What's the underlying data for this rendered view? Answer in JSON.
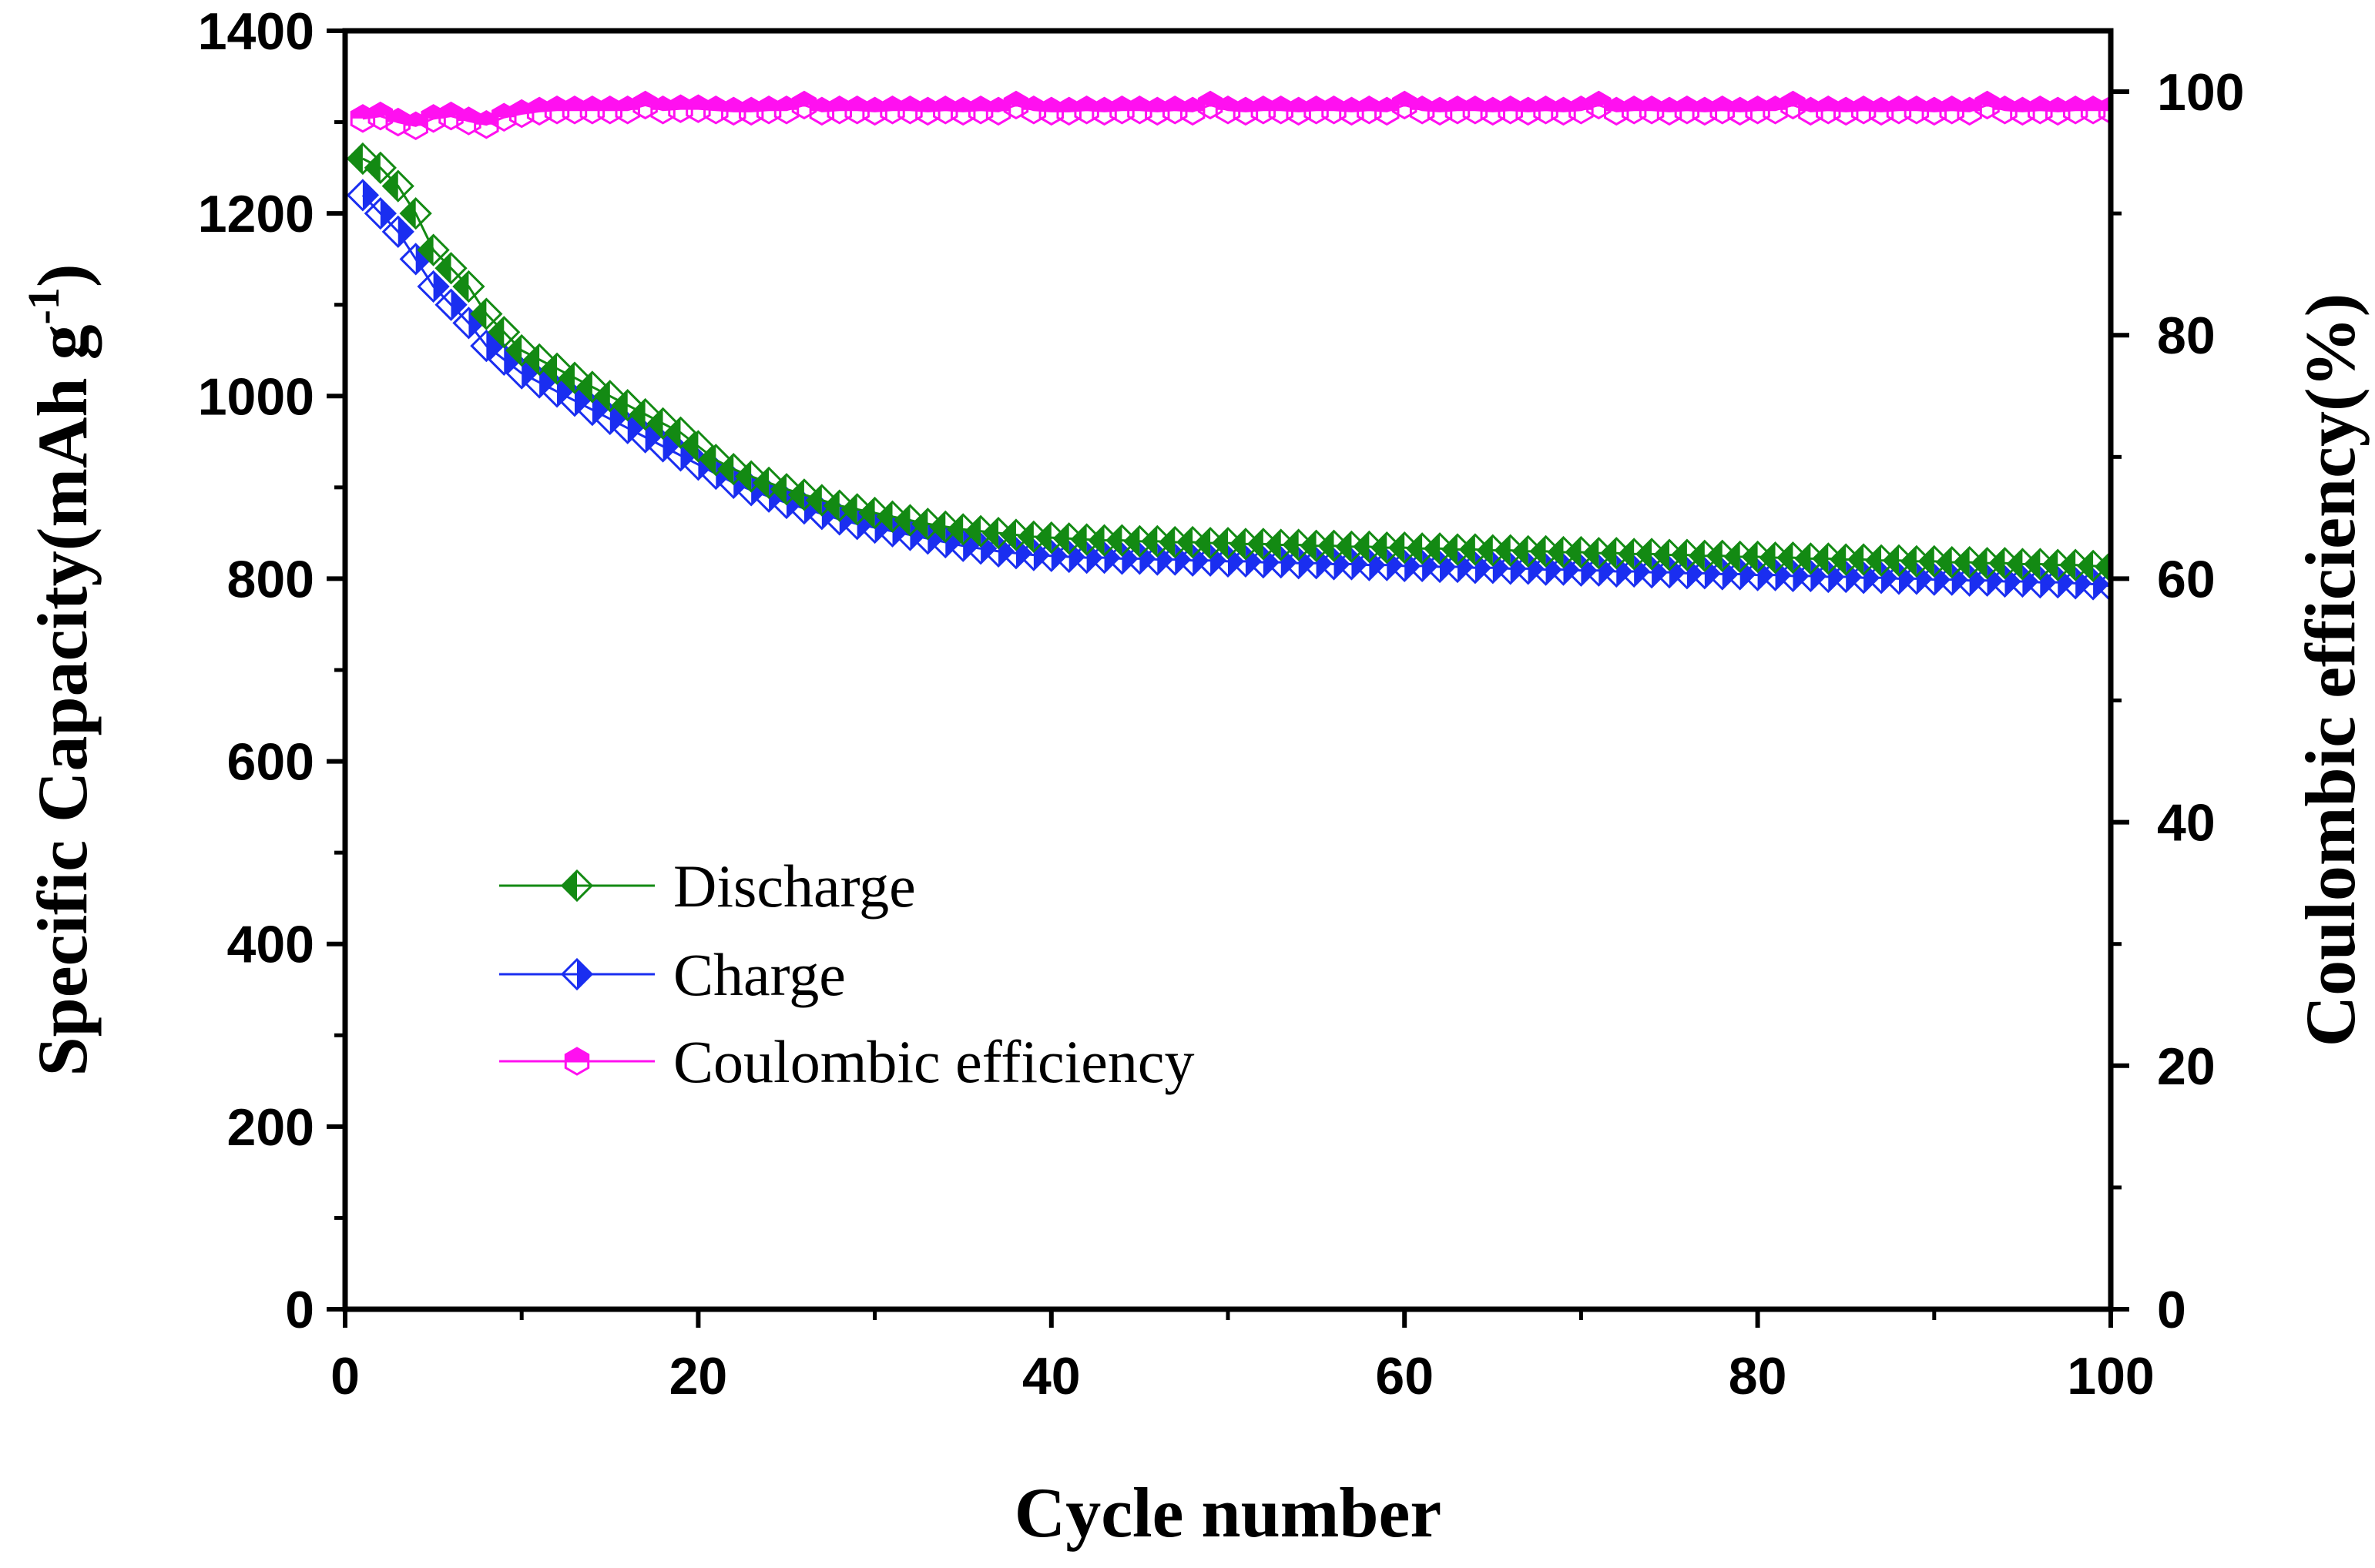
{
  "chart_data": {
    "type": "line",
    "title": "",
    "xlabel": "Cycle number",
    "ylabel": "Specific Capacity(mAh g",
    "ylabel_superscript": "-1",
    "ylabel_suffix": ")",
    "y2label": "Coulombic efficiency(%)",
    "xlim": [
      0,
      100
    ],
    "ylim": [
      0,
      1400
    ],
    "y2lim": [
      0,
      105
    ],
    "xticks": [
      "0",
      "20",
      "40",
      "60",
      "80",
      "100"
    ],
    "yticks": [
      "0",
      "200",
      "400",
      "600",
      "800",
      "1000",
      "1200",
      "1400"
    ],
    "y2ticks": [
      "0",
      "20",
      "40",
      "60",
      "80",
      "100"
    ],
    "legend_position": "center-left",
    "series": [
      {
        "name": "Discharge",
        "axis": "left",
        "color": "#138a13",
        "marker": "diamond-half-left",
        "x": [
          1,
          2,
          3,
          4,
          5,
          6,
          7,
          8,
          9,
          10,
          11,
          12,
          13,
          14,
          15,
          16,
          17,
          18,
          19,
          20,
          21,
          22,
          23,
          24,
          25,
          26,
          27,
          28,
          29,
          30,
          31,
          32,
          33,
          34,
          35,
          36,
          37,
          38,
          39,
          40,
          41,
          42,
          43,
          44,
          45,
          46,
          47,
          48,
          49,
          50,
          51,
          52,
          53,
          54,
          55,
          56,
          57,
          58,
          59,
          60,
          61,
          62,
          63,
          64,
          65,
          66,
          67,
          68,
          69,
          70,
          71,
          72,
          73,
          74,
          75,
          76,
          77,
          78,
          79,
          80,
          81,
          82,
          83,
          84,
          85,
          86,
          87,
          88,
          89,
          90,
          91,
          92,
          93,
          94,
          95,
          96,
          97,
          98,
          99,
          100
        ],
        "values": [
          1260,
          1250,
          1230,
          1200,
          1160,
          1140,
          1120,
          1090,
          1070,
          1050,
          1040,
          1030,
          1020,
          1010,
          1000,
          990,
          980,
          970,
          960,
          945,
          930,
          920,
          912,
          905,
          898,
          892,
          886,
          880,
          876,
          872,
          868,
          864,
          860,
          857,
          854,
          852,
          850,
          848,
          846,
          845,
          844,
          843,
          842,
          842,
          841,
          841,
          840,
          840,
          839,
          839,
          838,
          838,
          837,
          837,
          836,
          836,
          835,
          835,
          834,
          834,
          833,
          833,
          832,
          832,
          831,
          831,
          830,
          830,
          829,
          829,
          828,
          828,
          827,
          827,
          826,
          826,
          825,
          825,
          824,
          824,
          823,
          823,
          822,
          822,
          821,
          821,
          820,
          820,
          819,
          819,
          818,
          818,
          817,
          817,
          816,
          816,
          815,
          815,
          814,
          813
        ]
      },
      {
        "name": "Charge",
        "axis": "left",
        "color": "#1a2ef0",
        "marker": "diamond-half-right",
        "x": [
          1,
          2,
          3,
          4,
          5,
          6,
          7,
          8,
          9,
          10,
          11,
          12,
          13,
          14,
          15,
          16,
          17,
          18,
          19,
          20,
          21,
          22,
          23,
          24,
          25,
          26,
          27,
          28,
          29,
          30,
          31,
          32,
          33,
          34,
          35,
          36,
          37,
          38,
          39,
          40,
          41,
          42,
          43,
          44,
          45,
          46,
          47,
          48,
          49,
          50,
          51,
          52,
          53,
          54,
          55,
          56,
          57,
          58,
          59,
          60,
          61,
          62,
          63,
          64,
          65,
          66,
          67,
          68,
          69,
          70,
          71,
          72,
          73,
          74,
          75,
          76,
          77,
          78,
          79,
          80,
          81,
          82,
          83,
          84,
          85,
          86,
          87,
          88,
          89,
          90,
          91,
          92,
          93,
          94,
          95,
          96,
          97,
          98,
          99,
          100
        ],
        "values": [
          1220,
          1200,
          1180,
          1150,
          1120,
          1100,
          1080,
          1055,
          1040,
          1025,
          1015,
          1005,
          995,
          985,
          975,
          965,
          955,
          945,
          935,
          925,
          915,
          905,
          897,
          890,
          883,
          877,
          871,
          865,
          860,
          856,
          852,
          848,
          844,
          840,
          836,
          833,
          830,
          828,
          826,
          825,
          824,
          823,
          823,
          822,
          822,
          821,
          821,
          820,
          820,
          819,
          819,
          818,
          818,
          817,
          817,
          816,
          816,
          815,
          815,
          814,
          814,
          813,
          813,
          812,
          812,
          811,
          811,
          810,
          810,
          809,
          809,
          808,
          808,
          807,
          807,
          806,
          806,
          805,
          805,
          804,
          804,
          803,
          803,
          802,
          802,
          801,
          801,
          800,
          800,
          799,
          799,
          798,
          798,
          797,
          797,
          796,
          796,
          795,
          794,
          792
        ]
      },
      {
        "name": "Coulombic efficiency",
        "axis": "right",
        "color": "#ff10f0",
        "marker": "hexagon-half-top",
        "x": [
          1,
          2,
          3,
          4,
          5,
          6,
          7,
          8,
          9,
          10,
          11,
          12,
          13,
          14,
          15,
          16,
          17,
          18,
          19,
          20,
          21,
          22,
          23,
          24,
          25,
          26,
          27,
          28,
          29,
          30,
          31,
          32,
          33,
          34,
          35,
          36,
          37,
          38,
          39,
          40,
          41,
          42,
          43,
          44,
          45,
          46,
          47,
          48,
          49,
          50,
          51,
          52,
          53,
          54,
          55,
          56,
          57,
          58,
          59,
          60,
          61,
          62,
          63,
          64,
          65,
          66,
          67,
          68,
          69,
          70,
          71,
          72,
          73,
          74,
          75,
          76,
          77,
          78,
          79,
          80,
          81,
          82,
          83,
          84,
          85,
          86,
          87,
          88,
          89,
          90,
          91,
          92,
          93,
          94,
          95,
          96,
          97,
          98,
          99,
          100
        ],
        "values": [
          97.8,
          98.0,
          97.5,
          97.2,
          97.8,
          98.0,
          97.6,
          97.3,
          97.9,
          98.2,
          98.4,
          98.5,
          98.5,
          98.5,
          98.5,
          98.5,
          98.9,
          98.5,
          98.6,
          98.6,
          98.5,
          98.4,
          98.4,
          98.5,
          98.5,
          98.9,
          98.4,
          98.5,
          98.5,
          98.4,
          98.5,
          98.5,
          98.4,
          98.5,
          98.4,
          98.5,
          98.4,
          98.9,
          98.5,
          98.4,
          98.4,
          98.5,
          98.4,
          98.5,
          98.5,
          98.4,
          98.5,
          98.4,
          98.9,
          98.5,
          98.4,
          98.5,
          98.5,
          98.4,
          98.5,
          98.5,
          98.4,
          98.5,
          98.4,
          98.9,
          98.5,
          98.4,
          98.5,
          98.5,
          98.4,
          98.5,
          98.4,
          98.5,
          98.4,
          98.5,
          98.9,
          98.4,
          98.5,
          98.5,
          98.4,
          98.5,
          98.4,
          98.5,
          98.4,
          98.5,
          98.5,
          98.9,
          98.4,
          98.5,
          98.4,
          98.5,
          98.4,
          98.5,
          98.5,
          98.4,
          98.5,
          98.4,
          98.9,
          98.5,
          98.4,
          98.5,
          98.4,
          98.5,
          98.5,
          98.5
        ]
      }
    ]
  }
}
